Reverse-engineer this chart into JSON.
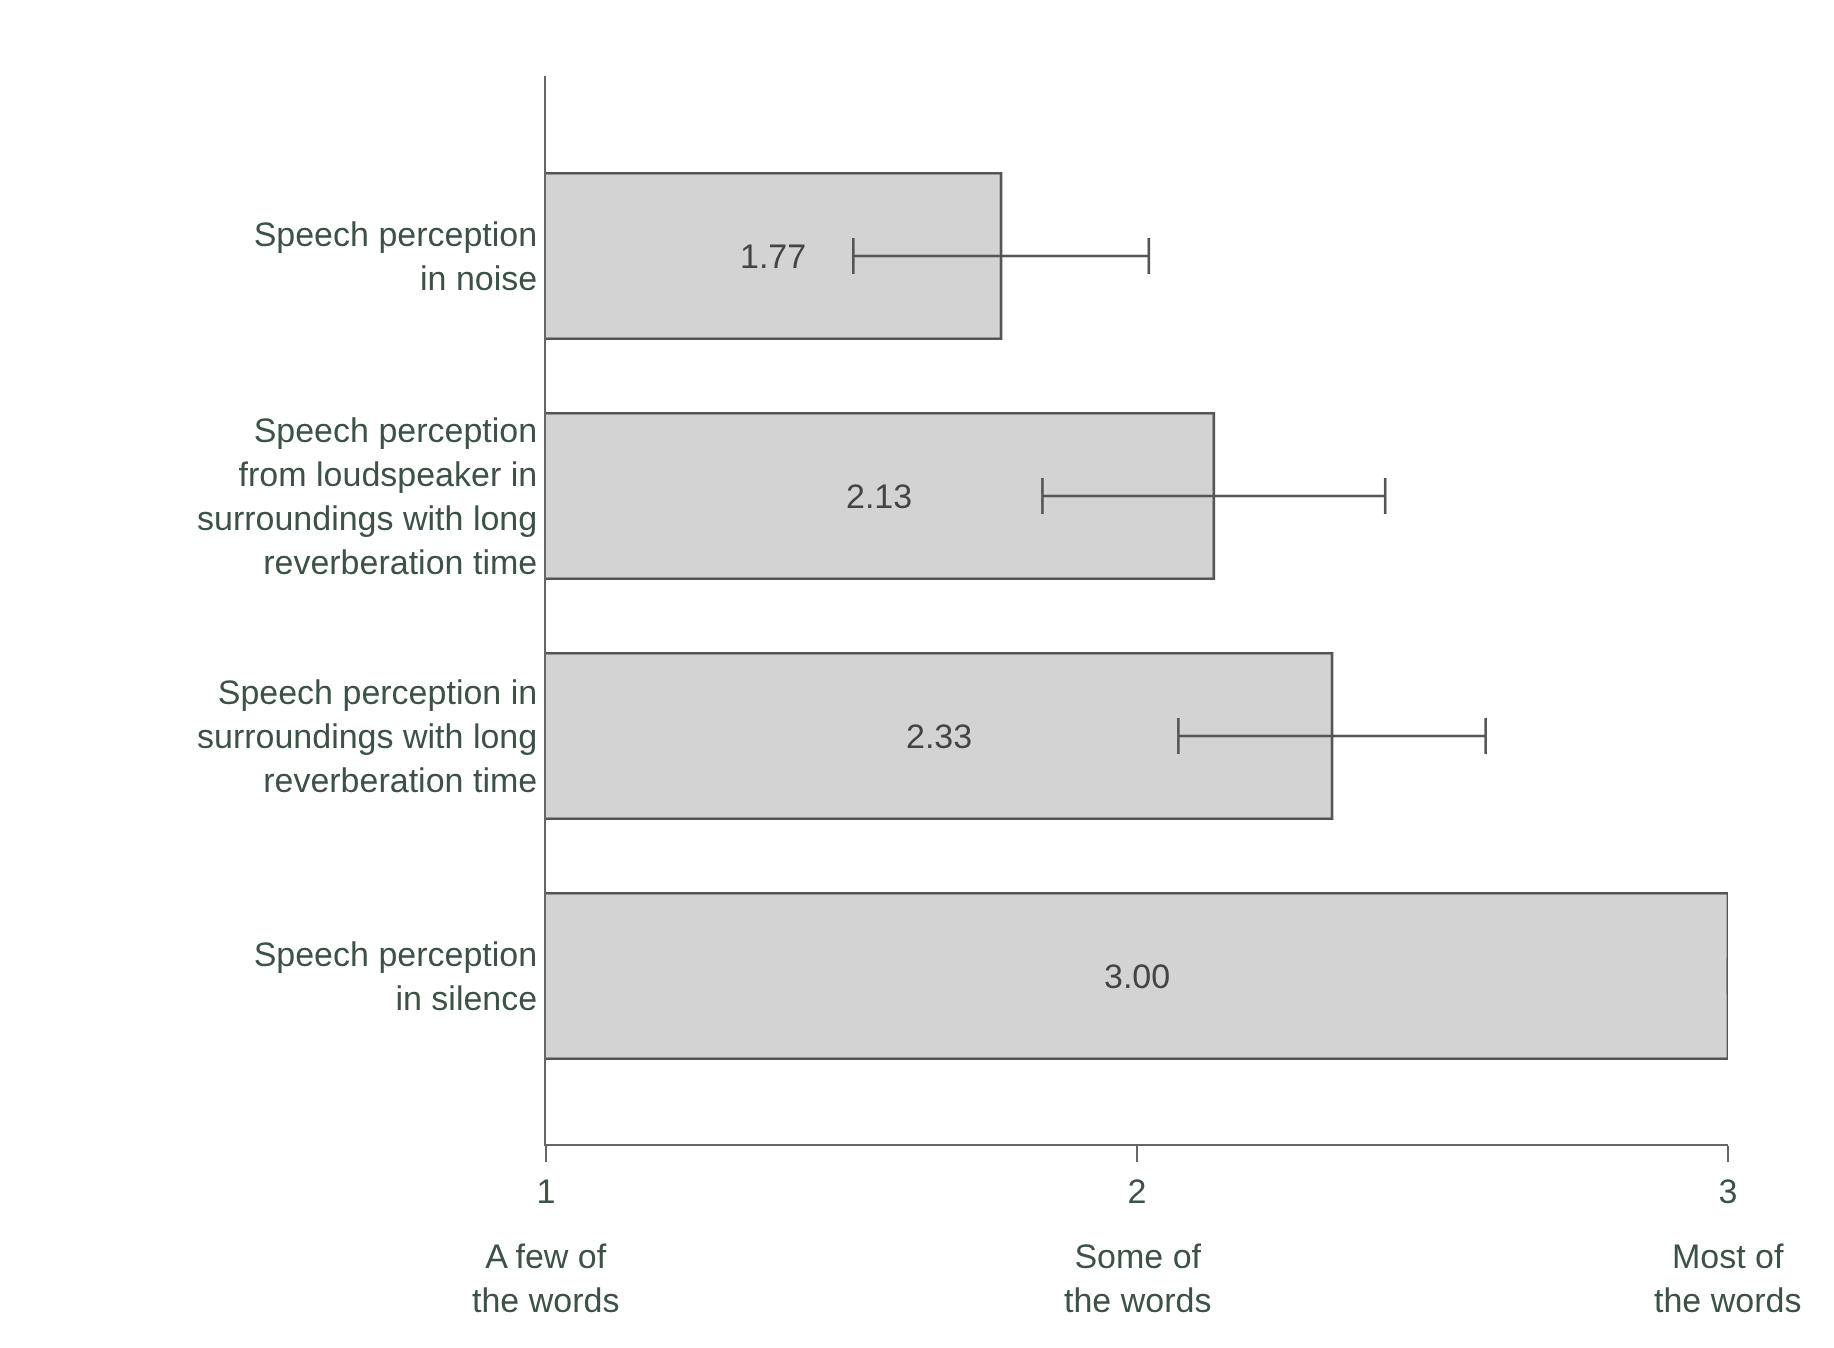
{
  "chart_data": {
    "type": "bar",
    "orientation": "horizontal",
    "categories": [
      "Speech perception\nin noise",
      "Speech perception\nfrom loudspeaker in\nsurroundings with long\nreverberation time",
      "Speech perception in\nsurroundings with long\nreverberation time",
      "Speech perception\nin silence"
    ],
    "values": [
      1.77,
      2.13,
      2.33,
      3.0
    ],
    "value_labels": [
      "1.77",
      "2.13",
      "2.33",
      "3.00"
    ],
    "errors": [
      0.25,
      0.29,
      0.26,
      null
    ],
    "color": "#d3d3d3",
    "xlim": [
      1,
      3
    ],
    "xticks": [
      1,
      2,
      3
    ],
    "annotations": [
      "A few of\nthe words",
      "Some of\nthe words",
      "Most of\nthe words"
    ],
    "grid": false,
    "legend": false
  }
}
